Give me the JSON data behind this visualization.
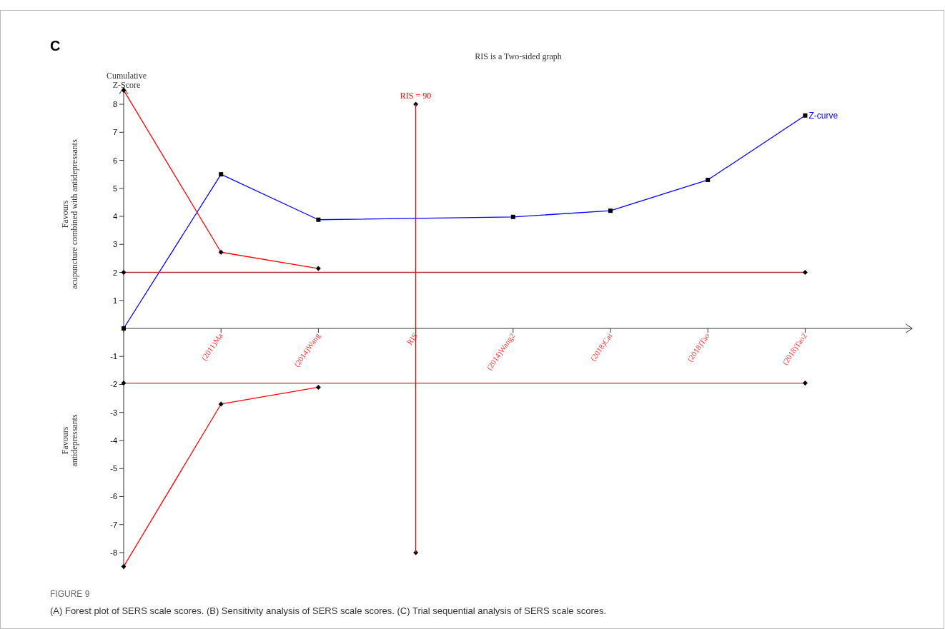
{
  "chart_data": {
    "type": "line",
    "title": "RIS is a Two-sided graph",
    "ylabel": "Cumulative Z-Score",
    "annotations": [
      "C",
      "Favours\nacupuncture combined with antidepressants",
      "Favours\nantidepressants",
      "FIGURE 9",
      "(A) Forest plot of SERS scale scores. (B) Sensitivity analysis of SERS scale scores. (C) Trial sequential analysis of SERS scale scores."
    ],
    "categories": [
      null,
      "(2011)Ma",
      "(2014)Wang",
      "RIS",
      "(2014)Wang2",
      "(2018)Cai",
      "(2018)Tao",
      "(2018)Tao2"
    ],
    "ylim": [
      -8.6,
      8.6
    ],
    "yticks": [
      -8,
      -7,
      -6,
      -5,
      -4,
      -3,
      -2,
      -1,
      1,
      2,
      3,
      4,
      5,
      6,
      7,
      8
    ],
    "grid": false,
    "legend": false,
    "ref_lines": [
      {
        "axis": "x",
        "value": "RIS",
        "label": "RIS = 90",
        "color": "#ff0000"
      }
    ],
    "series": [
      {
        "name": "Z-curve",
        "color": "#0000ff",
        "marker": "square",
        "values": [
          0,
          5.5,
          3.88,
          null,
          3.98,
          4.2,
          5.3,
          7.6
        ]
      },
      {
        "color": "#ff0000",
        "marker": "diamond",
        "values": [
          8.5,
          2.72,
          2.14,
          null,
          null,
          null,
          null,
          null
        ]
      },
      {
        "color": "#ff0000",
        "marker": "diamond",
        "values": [
          -8.5,
          -2.7,
          -2.1,
          null,
          null,
          null,
          null,
          null
        ]
      },
      {
        "color": "#c03030",
        "marker": "diamond",
        "values": [
          2,
          null,
          null,
          null,
          null,
          null,
          null,
          2
        ]
      },
      {
        "color": "#c03030",
        "marker": "diamond",
        "values": [
          -1.95,
          null,
          null,
          null,
          null,
          null,
          null,
          -1.95
        ]
      },
      {
        "type": "scatter",
        "color": "#000000",
        "marker": "diamond",
        "x": [
          "RIS",
          "RIS"
        ],
        "values": [
          8,
          -8
        ]
      }
    ]
  }
}
